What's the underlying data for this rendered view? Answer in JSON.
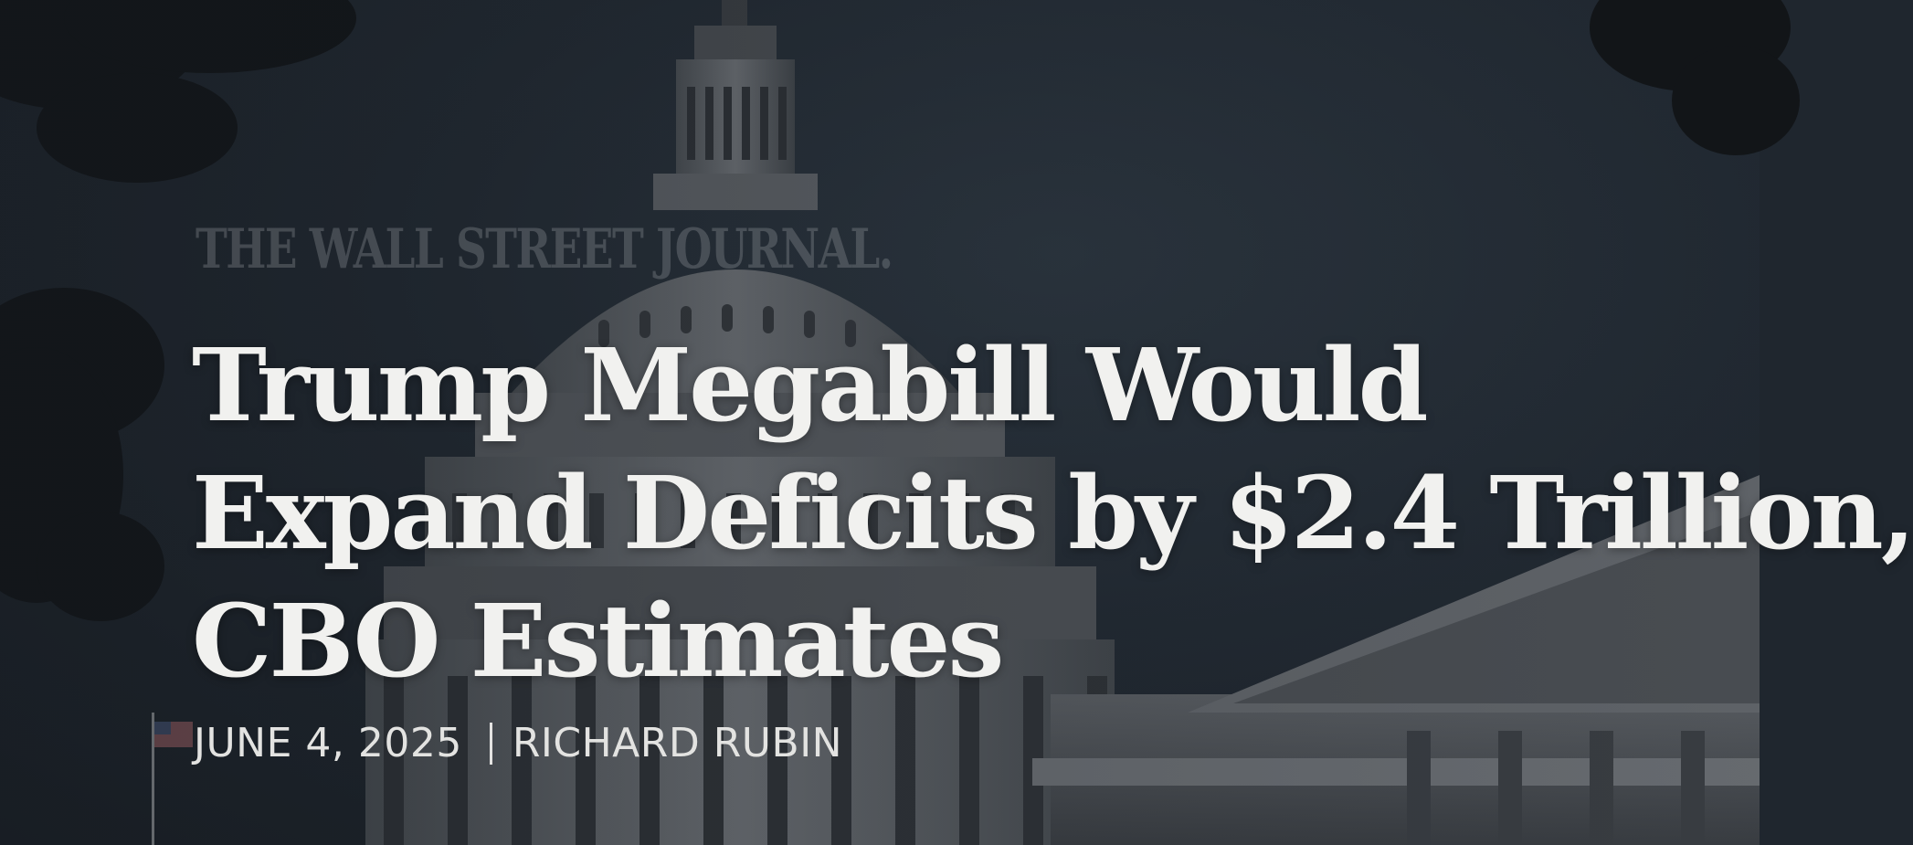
{
  "masthead": {
    "text": "THE WALL STREET JOURNAL."
  },
  "article": {
    "headline_lines": [
      "Trump Megabill Would",
      "Expand Deficits by $2.4 Trillion,",
      "CBO Estimates"
    ],
    "date": "JUNE 4, 2025",
    "author": "RICHARD RUBIN"
  },
  "colors": {
    "background": "#222a33",
    "headline": "#f1f1ef",
    "byline": "#e3e3e1"
  },
  "icons": [
    "tree-foliage",
    "capitol-dome",
    "american-flag"
  ]
}
